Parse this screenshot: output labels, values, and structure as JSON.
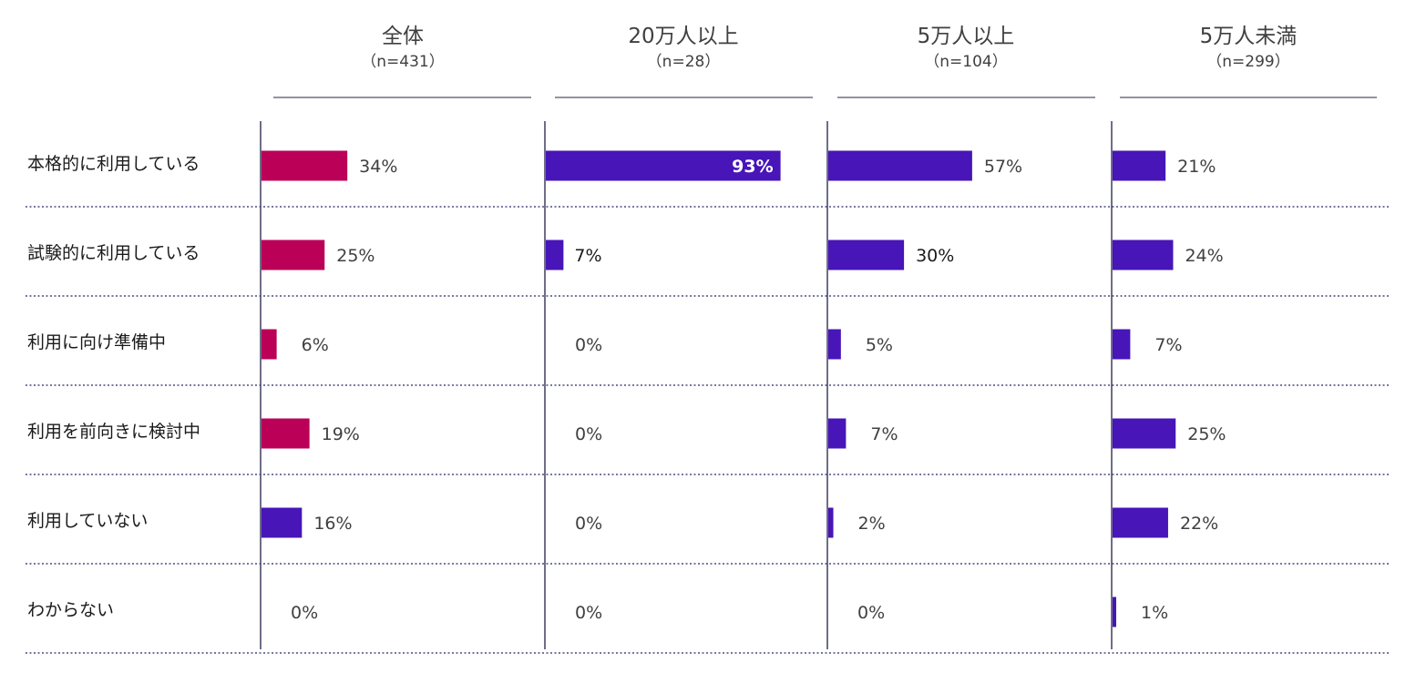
{
  "colors": {
    "total_bar": "#bb0057",
    "bar": "#4715b8",
    "not_using_total": "#4715b8",
    "axis": "#4a4a6a",
    "separator": "#4a4a80"
  },
  "chart_data": {
    "type": "bar",
    "orientation": "horizontal",
    "unit": "%",
    "categories": [
      "本格的に利用している",
      "試験的に利用している",
      "利用に向け準備中",
      "利用を前向きに検討中",
      "利用していない",
      "わからない"
    ],
    "series": [
      {
        "name": "全体",
        "n": "（n=431）",
        "values": [
          34,
          25,
          6,
          19,
          16,
          0
        ]
      },
      {
        "name": "20万人以上",
        "n": "（n=28）",
        "values": [
          93,
          7,
          0,
          0,
          0,
          0
        ]
      },
      {
        "name": "5万人以上",
        "n": "（n=104）",
        "values": [
          57,
          30,
          5,
          7,
          2,
          0
        ]
      },
      {
        "name": "5万人未満",
        "n": "（n=299）",
        "values": [
          21,
          24,
          7,
          25,
          22,
          1
        ]
      }
    ],
    "xlim": [
      0,
      100
    ],
    "grid": false
  }
}
